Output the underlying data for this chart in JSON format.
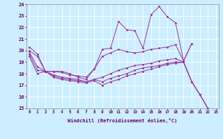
{
  "xlabel": "Windchill (Refroidissement éolien,°C)",
  "bg_color": "#cceeff",
  "line_color": "#993399",
  "grid_color": "#aadddd",
  "xmin": 0,
  "xmax": 23,
  "ymin": 15,
  "ymax": 24,
  "x_ticks": [
    0,
    1,
    2,
    3,
    4,
    5,
    6,
    7,
    8,
    9,
    10,
    11,
    12,
    13,
    14,
    15,
    16,
    17,
    18,
    19,
    20,
    21,
    22,
    23
  ],
  "y_ticks": [
    15,
    16,
    17,
    18,
    19,
    20,
    21,
    22,
    23,
    24
  ],
  "series": [
    {
      "x": [
        0,
        1,
        2,
        3,
        4,
        5,
        6,
        7,
        8,
        9,
        10,
        11,
        12,
        13,
        14,
        15,
        16,
        17,
        18,
        19,
        20
      ],
      "y": [
        20.3,
        19.7,
        18.2,
        18.2,
        18.2,
        18.0,
        17.7,
        17.5,
        18.4,
        20.1,
        20.2,
        22.5,
        21.8,
        21.7,
        20.2,
        23.1,
        23.8,
        22.9,
        22.4,
        19.1,
        20.6
      ]
    },
    {
      "x": [
        0,
        1,
        2,
        3,
        4,
        5,
        6,
        7,
        8,
        9,
        10,
        11,
        12,
        13,
        14,
        15,
        16,
        17,
        18,
        19,
        20
      ],
      "y": [
        20.0,
        19.5,
        18.2,
        18.2,
        18.1,
        17.9,
        17.8,
        17.7,
        18.4,
        19.5,
        19.8,
        20.1,
        19.9,
        19.8,
        19.9,
        20.1,
        20.2,
        20.3,
        20.5,
        19.1,
        20.6
      ]
    },
    {
      "x": [
        0,
        1,
        2,
        3,
        4,
        5,
        6,
        7,
        8,
        9,
        10,
        11,
        12,
        13,
        14,
        15,
        16,
        17,
        18,
        19,
        20,
        21,
        22
      ],
      "y": [
        19.9,
        18.6,
        18.2,
        17.9,
        17.7,
        17.6,
        17.5,
        17.3,
        17.5,
        17.7,
        18.0,
        18.3,
        18.5,
        18.7,
        18.8,
        18.9,
        19.1,
        19.2,
        19.3,
        19.0,
        17.3,
        16.2,
        15.0
      ]
    },
    {
      "x": [
        0,
        1,
        2,
        3,
        4,
        5,
        6,
        7,
        8,
        9,
        10,
        11,
        12,
        13,
        14,
        15,
        16,
        17,
        18,
        19,
        20,
        21,
        22
      ],
      "y": [
        19.7,
        18.3,
        18.2,
        17.8,
        17.6,
        17.5,
        17.4,
        17.3,
        17.5,
        17.3,
        17.6,
        17.8,
        18.0,
        18.3,
        18.5,
        18.6,
        18.7,
        18.9,
        19.0,
        19.0,
        17.3,
        16.2,
        15.0
      ]
    },
    {
      "x": [
        0,
        1,
        2,
        3,
        4,
        5,
        6,
        7,
        8,
        9,
        10,
        11,
        12,
        13,
        14,
        15,
        16,
        17,
        18,
        19,
        20,
        21,
        22
      ],
      "y": [
        19.5,
        18.0,
        18.2,
        17.7,
        17.5,
        17.4,
        17.3,
        17.2,
        17.4,
        17.0,
        17.3,
        17.5,
        17.8,
        18.0,
        18.2,
        18.4,
        18.6,
        18.8,
        18.9,
        19.0,
        17.3,
        16.2,
        15.0
      ]
    }
  ]
}
